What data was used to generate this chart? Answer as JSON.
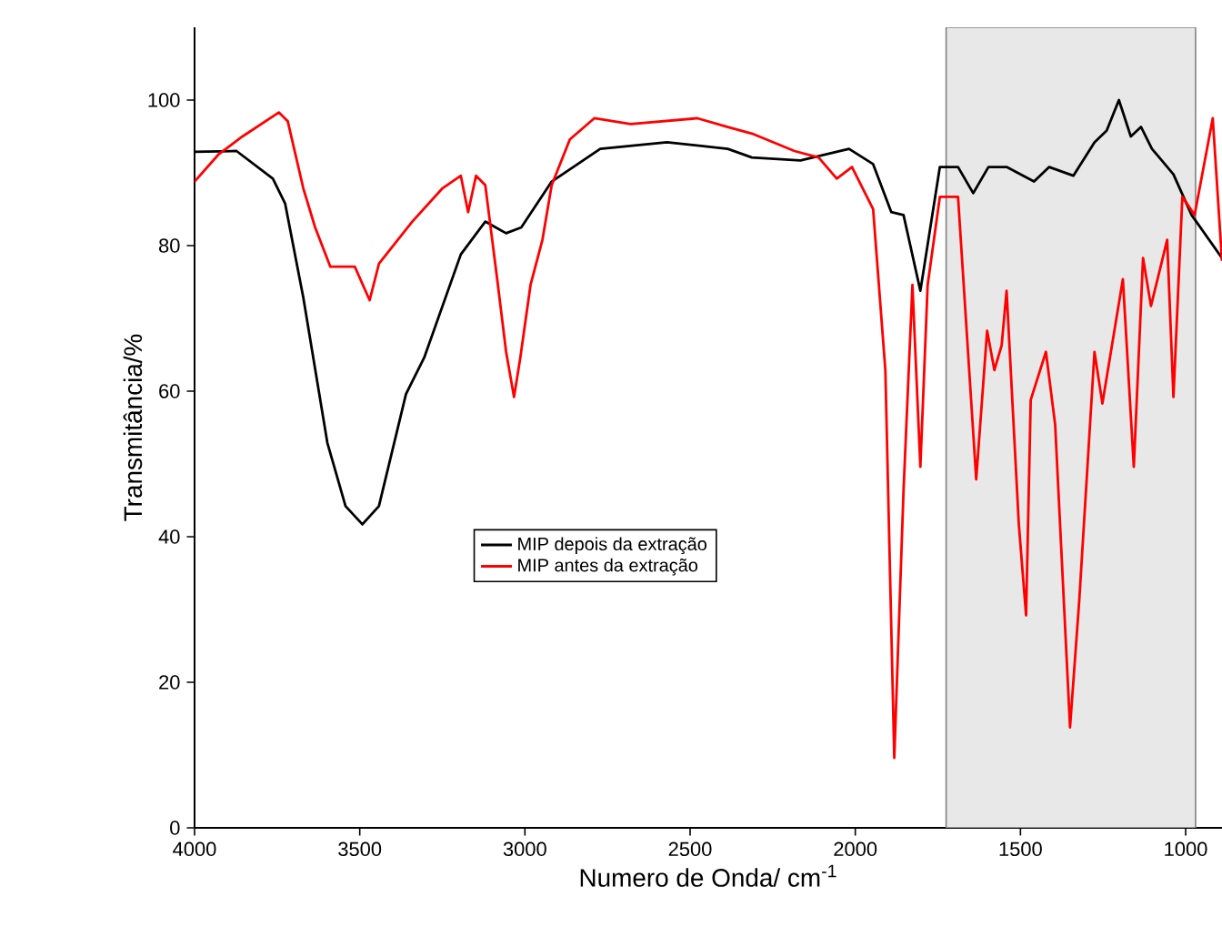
{
  "chart_data": {
    "type": "line",
    "xlabel": "Numero de Onda/ cm$^{-1}$",
    "ylabel": "Transmitância/%",
    "xlim": [
      4000,
      890
    ],
    "xticks": [
      4000,
      3500,
      3000,
      2500,
      2000,
      1500,
      1000
    ],
    "ylim": [
      0,
      110
    ],
    "yticks": [
      0,
      20,
      40,
      60,
      80,
      100
    ],
    "grid": false,
    "legend": "center",
    "marker": "none",
    "line_style": "solid",
    "bands": [
      {
        "axis": "x",
        "from": 1725,
        "to": 970,
        "color": "#e8e8e8"
      }
    ],
    "series": [
      {
        "name": "MIP depois da extração",
        "color": "#000000",
        "x": [
          4000,
          3873,
          3763,
          3726,
          3671,
          3598,
          3543,
          3492,
          3442,
          3360,
          3305,
          3194,
          3120,
          3057,
          3011,
          2919,
          2772,
          2570,
          2386,
          2313,
          2166,
          2019,
          1946,
          1891,
          1854,
          1803,
          1744,
          1689,
          1643,
          1597,
          1542,
          1459,
          1413,
          1340,
          1276,
          1239,
          1202,
          1166,
          1135,
          1102,
          1037,
          982,
          890
        ],
        "values": [
          92.9,
          93,
          89.2,
          85.8,
          72.9,
          52.9,
          44.2,
          41.7,
          44.2,
          59.6,
          64.6,
          78.8,
          83.3,
          81.7,
          82.5,
          88.8,
          93.3,
          94.2,
          93.3,
          92.1,
          91.7,
          93.3,
          91.2,
          84.6,
          84.2,
          73.8,
          90.8,
          90.8,
          87.2,
          90.8,
          90.8,
          88.8,
          90.8,
          89.6,
          94.2,
          95.8,
          100,
          95,
          96.3,
          93.3,
          89.8,
          84.2,
          78.3
        ]
      },
      {
        "name": "MIP antes da extração",
        "color": "#ff0000",
        "x": [
          4000,
          3928,
          3855,
          3745,
          3718,
          3671,
          3635,
          3589,
          3515,
          3470,
          3442,
          3341,
          3249,
          3194,
          3172,
          3148,
          3120,
          3084,
          3057,
          3033,
          3014,
          2983,
          2947,
          2919,
          2864,
          2790,
          2680,
          2478,
          2386,
          2313,
          2184,
          2111,
          2056,
          2010,
          1946,
          1909,
          1882,
          1854,
          1827,
          1803,
          1781,
          1744,
          1689,
          1634,
          1601,
          1579,
          1557,
          1542,
          1505,
          1483,
          1469,
          1423,
          1395,
          1350,
          1322,
          1276,
          1252,
          1190,
          1157,
          1129,
          1105,
          1056,
          1037,
          1010,
          973,
          918,
          890
        ],
        "values": [
          88.8,
          92.5,
          95,
          98.3,
          97.1,
          87.9,
          82.5,
          77.1,
          77.1,
          72.5,
          77.5,
          83.3,
          87.9,
          89.6,
          84.6,
          89.6,
          88.3,
          75.4,
          65.4,
          59.2,
          64.6,
          74.6,
          80.8,
          88.3,
          94.6,
          97.5,
          96.7,
          97.5,
          96.3,
          95.4,
          93,
          92.1,
          89.2,
          90.8,
          85,
          62.9,
          9.6,
          46.3,
          74.6,
          49.6,
          74.6,
          86.7,
          86.7,
          47.9,
          68.3,
          62.9,
          66.3,
          73.8,
          41.7,
          29.2,
          58.8,
          65.4,
          55.4,
          13.8,
          31.3,
          65.4,
          58.3,
          75.4,
          49.6,
          78.3,
          71.7,
          80.8,
          59.2,
          86.7,
          84.2,
          97.5,
          77.9
        ]
      }
    ]
  }
}
